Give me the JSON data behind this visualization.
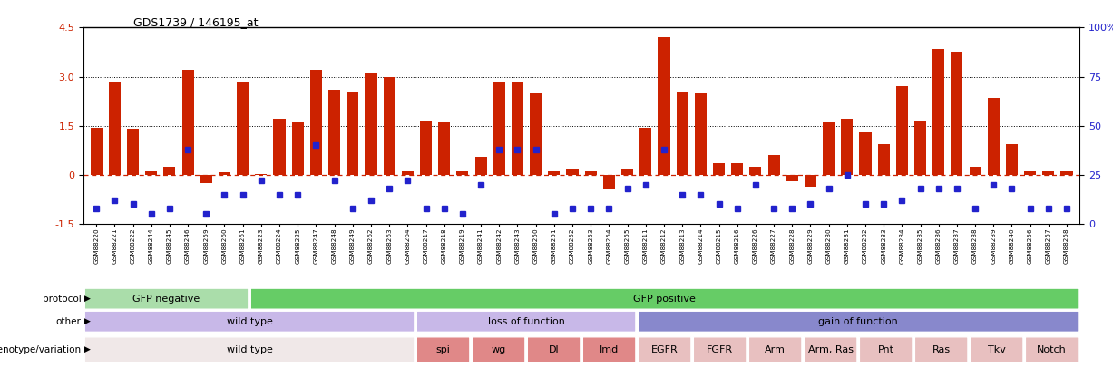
{
  "title": "GDS1739 / 146195_at",
  "sample_ids": [
    "GSM88220",
    "GSM88221",
    "GSM88222",
    "GSM88244",
    "GSM88245",
    "GSM88246",
    "GSM88259",
    "GSM88260",
    "GSM88261",
    "GSM88223",
    "GSM88224",
    "GSM88225",
    "GSM88247",
    "GSM88248",
    "GSM88249",
    "GSM88262",
    "GSM88263",
    "GSM88264",
    "GSM88217",
    "GSM88218",
    "GSM88219",
    "GSM88241",
    "GSM88242",
    "GSM88243",
    "GSM88250",
    "GSM88251",
    "GSM88252",
    "GSM88253",
    "GSM88254",
    "GSM88255",
    "GSM88211",
    "GSM88212",
    "GSM88213",
    "GSM88214",
    "GSM88215",
    "GSM88216",
    "GSM88226",
    "GSM88227",
    "GSM88228",
    "GSM88229",
    "GSM88230",
    "GSM88231",
    "GSM88232",
    "GSM88233",
    "GSM88234",
    "GSM88235",
    "GSM88236",
    "GSM88237",
    "GSM88238",
    "GSM88239",
    "GSM88240",
    "GSM88256",
    "GSM88257",
    "GSM88258"
  ],
  "bar_values": [
    1.45,
    2.85,
    1.4,
    0.12,
    0.25,
    3.2,
    -0.25,
    0.07,
    2.85,
    0.02,
    1.7,
    1.6,
    3.2,
    2.6,
    2.55,
    3.1,
    3.0,
    0.12,
    1.65,
    1.6,
    0.12,
    0.55,
    2.85,
    2.85,
    2.5,
    0.12,
    0.15,
    0.12,
    -0.45,
    0.18,
    1.45,
    4.2,
    2.55,
    2.5,
    0.35,
    0.35,
    0.25,
    0.6,
    -0.2,
    -0.35,
    1.6,
    1.7,
    1.3,
    0.95,
    2.7,
    1.65,
    3.85,
    3.75,
    0.25,
    2.35,
    0.95,
    0.12,
    0.12,
    0.12
  ],
  "dot_values_pct": [
    8,
    12,
    10,
    5,
    8,
    38,
    5,
    15,
    15,
    22,
    15,
    15,
    40,
    22,
    8,
    12,
    18,
    22,
    8,
    8,
    5,
    20,
    38,
    38,
    38,
    5,
    8,
    8,
    8,
    18,
    20,
    38,
    15,
    15,
    10,
    8,
    20,
    8,
    8,
    10,
    18,
    25,
    10,
    10,
    12,
    18,
    18,
    18,
    8,
    20,
    18,
    8,
    8,
    8
  ],
  "protocol_groups": [
    {
      "label": "GFP negative",
      "start": 0,
      "end": 8,
      "color": "#aaddaa"
    },
    {
      "label": "GFP positive",
      "start": 9,
      "end": 53,
      "color": "#66cc66"
    }
  ],
  "other_groups": [
    {
      "label": "wild type",
      "start": 0,
      "end": 17,
      "color": "#c8b8e8"
    },
    {
      "label": "loss of function",
      "start": 18,
      "end": 29,
      "color": "#c8b8e8"
    },
    {
      "label": "gain of function",
      "start": 30,
      "end": 53,
      "color": "#8888cc"
    }
  ],
  "genotype_groups": [
    {
      "label": "wild type",
      "start": 0,
      "end": 17,
      "color": "#f0e8e8"
    },
    {
      "label": "spi",
      "start": 18,
      "end": 20,
      "color": "#e08888"
    },
    {
      "label": "wg",
      "start": 21,
      "end": 23,
      "color": "#e08888"
    },
    {
      "label": "Dl",
      "start": 24,
      "end": 26,
      "color": "#e08888"
    },
    {
      "label": "Imd",
      "start": 27,
      "end": 29,
      "color": "#e08888"
    },
    {
      "label": "EGFR",
      "start": 30,
      "end": 32,
      "color": "#e8c0c0"
    },
    {
      "label": "FGFR",
      "start": 33,
      "end": 35,
      "color": "#e8c0c0"
    },
    {
      "label": "Arm",
      "start": 36,
      "end": 38,
      "color": "#e8c0c0"
    },
    {
      "label": "Arm, Ras",
      "start": 39,
      "end": 41,
      "color": "#e8c0c0"
    },
    {
      "label": "Pnt",
      "start": 42,
      "end": 44,
      "color": "#e8c0c0"
    },
    {
      "label": "Ras",
      "start": 45,
      "end": 47,
      "color": "#e8c0c0"
    },
    {
      "label": "Tkv",
      "start": 48,
      "end": 50,
      "color": "#e8c0c0"
    },
    {
      "label": "Notch",
      "start": 51,
      "end": 53,
      "color": "#e8c0c0"
    }
  ],
  "bar_color": "#cc2200",
  "dot_color": "#2222cc",
  "zero_line_color": "#cc2200",
  "ylim_left": [
    -1.5,
    4.5
  ],
  "ylim_right": [
    0,
    100
  ],
  "yticks_left": [
    -1.5,
    0.0,
    1.5,
    3.0,
    4.5
  ],
  "ytick_labels_left": [
    "-1.5",
    "0",
    "1.5",
    "3.0",
    "4.5"
  ],
  "yticks_right": [
    0,
    25,
    50,
    75,
    100
  ],
  "ytick_labels_right": [
    "0",
    "25",
    "50",
    "75",
    "100%"
  ],
  "hlines": [
    1.5,
    3.0
  ],
  "background_color": "#ffffff",
  "row_labels": [
    "protocol",
    "other",
    "genotype/variation"
  ]
}
